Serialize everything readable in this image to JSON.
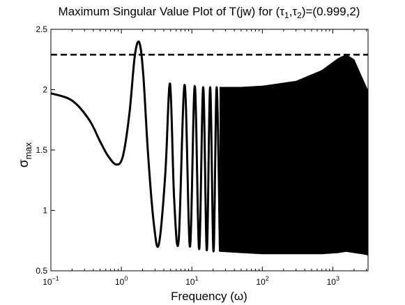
{
  "chart_data": {
    "type": "line",
    "title": "Maximum Singular Value Plot of T(jw) for (τ1,τ2)=(0.999,2)",
    "title_parts": {
      "prefix": "Maximum Singular Value Plot of T(jw) for (",
      "tau": "τ",
      "sub1": "1",
      "comma": ",",
      "sub2": "2",
      "suffix": ")=(0.999,2)"
    },
    "xlabel": "Frequency (ω)",
    "ylabel": "σ",
    "ylabel_sub": "max",
    "xscale": "log",
    "xlim": [
      0.1,
      3162
    ],
    "ylim": [
      0.5,
      2.5
    ],
    "x_ticks": [
      {
        "value": 0.1,
        "base": "10",
        "exp": "−1"
      },
      {
        "value": 1,
        "base": "10",
        "exp": "0"
      },
      {
        "value": 10,
        "base": "10",
        "exp": "1"
      },
      {
        "value": 100,
        "base": "10",
        "exp": "2"
      },
      {
        "value": 1000,
        "base": "10",
        "exp": "3"
      }
    ],
    "y_ticks": [
      "0.5",
      "1",
      "1.5",
      "2",
      "2.5"
    ],
    "grid": false,
    "series": [
      {
        "style": "solid",
        "color": "#000000",
        "x": [
          0.1,
          0.2,
          0.35,
          0.5,
          0.65,
          0.85,
          1.05,
          1.3,
          1.55,
          1.8,
          2.05,
          2.4,
          2.9,
          3.4,
          4.2,
          4.9,
          5.6,
          6.5,
          7.9,
          9.4,
          11.0,
          12.7,
          14.5,
          16.3,
          18.2,
          20.3,
          22.5,
          25.0
        ],
        "y": [
          1.97,
          1.91,
          1.75,
          1.57,
          1.45,
          1.38,
          1.45,
          1.8,
          2.28,
          2.39,
          2.12,
          1.45,
          0.88,
          0.72,
          1.3,
          2.05,
          1.1,
          0.75,
          2.04,
          0.7,
          2.03,
          0.68,
          2.02,
          0.67,
          2.02,
          0.66,
          2.02,
          0.66
        ],
        "envelope_high_freq": {
          "x": [
            25,
            50,
            100,
            300,
            700,
            1200,
            1550,
            2000,
            2600,
            3162
          ],
          "upper": [
            2.02,
            2.02,
            2.03,
            2.07,
            2.16,
            2.26,
            2.29,
            2.25,
            2.1,
            1.99
          ],
          "lower": [
            0.66,
            0.65,
            0.64,
            0.64,
            0.64,
            0.65,
            0.66,
            0.65,
            0.64,
            0.63
          ]
        }
      },
      {
        "style": "dashed",
        "color": "#000000",
        "x": [
          0.1,
          3162
        ],
        "y": [
          2.29,
          2.29
        ]
      }
    ]
  }
}
